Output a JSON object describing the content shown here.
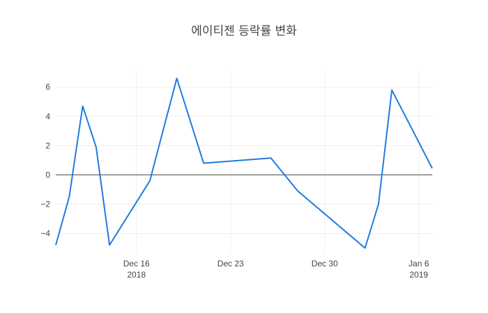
{
  "chart_data": {
    "type": "line",
    "title": "에이티젠 등락률 변화",
    "xlabel": "",
    "ylabel": "",
    "x_axis_type": "date",
    "xlim": [
      "2018-12-10",
      "2019-01-07"
    ],
    "ylim": [
      -5.4,
      7.2
    ],
    "grid": true,
    "zero_line": true,
    "legend": "none",
    "x_ticks": [
      {
        "date": "2018-12-16",
        "label": "Dec 16",
        "sublabel": "2018"
      },
      {
        "date": "2018-12-23",
        "label": "Dec 23",
        "sublabel": ""
      },
      {
        "date": "2018-12-30",
        "label": "Dec 30",
        "sublabel": ""
      },
      {
        "date": "2019-01-06",
        "label": "Jan 6",
        "sublabel": "2019"
      }
    ],
    "y_ticks": [
      {
        "value": -4,
        "label": "−4"
      },
      {
        "value": -2,
        "label": "−2"
      },
      {
        "value": 0,
        "label": "0"
      },
      {
        "value": 2,
        "label": "2"
      },
      {
        "value": 4,
        "label": "4"
      },
      {
        "value": 6,
        "label": "6"
      }
    ],
    "series": [
      {
        "color": "#1f7be0",
        "x": [
          "2018-12-10",
          "2018-12-11",
          "2018-12-12",
          "2018-12-13",
          "2018-12-14",
          "2018-12-17",
          "2018-12-19",
          "2018-12-21",
          "2018-12-26",
          "2018-12-28",
          "2019-01-02",
          "2019-01-03",
          "2019-01-04",
          "2019-01-07"
        ],
        "y": [
          -4.8,
          -1.5,
          4.7,
          1.9,
          -4.8,
          -0.4,
          6.6,
          0.8,
          1.15,
          -1.1,
          -5.0,
          -2.0,
          5.8,
          0.45
        ]
      }
    ]
  }
}
